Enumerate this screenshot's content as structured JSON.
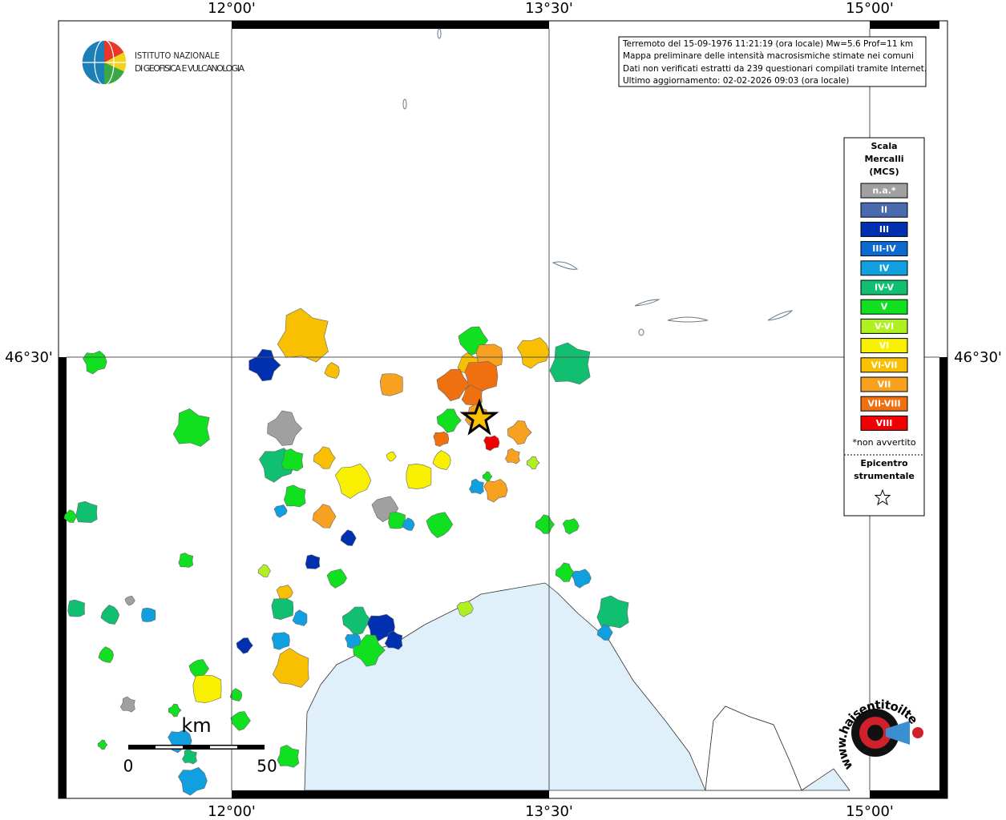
{
  "logo": {
    "line1": "ISTITUTO NAZIONALE",
    "line2": "DI GEOFISICA E VULCANOLOGIA"
  },
  "info": [
    "Terremoto del 15-09-1976 11:21:19 (ora locale) Mw=5.6 Prof=11 km",
    "Mappa preliminare delle intensità macrosismiche stimate nei comuni",
    "Dati non verificati estratti da 239 questionari compilati tramite Internet.",
    "Ultimo aggiornamento: 02-02-2026 09:03 (ora locale)"
  ],
  "grid_labels": {
    "lon": [
      "12°00'",
      "13°30'",
      "15°00'"
    ],
    "lat": [
      "46°30'"
    ]
  },
  "legend": {
    "title": [
      "Scala",
      "Mercalli",
      "(MCS)"
    ],
    "items": [
      {
        "label": "n.a.*",
        "color": "#a0a0a0"
      },
      {
        "label": "II",
        "color": "#4a6ab0"
      },
      {
        "label": "III",
        "color": "#0030b0"
      },
      {
        "label": "III-IV",
        "color": "#0a6ad0"
      },
      {
        "label": "IV",
        "color": "#10a0e0"
      },
      {
        "label": "IV-V",
        "color": "#10c070"
      },
      {
        "label": "V",
        "color": "#10e020"
      },
      {
        "label": "V-VI",
        "color": "#b0f020"
      },
      {
        "label": "VI",
        "color": "#f8f000"
      },
      {
        "label": "VI-VII",
        "color": "#f8c000"
      },
      {
        "label": "VII",
        "color": "#f8a020"
      },
      {
        "label": "VII-VIII",
        "color": "#f07010"
      },
      {
        "label": "VIII",
        "color": "#f00000"
      }
    ],
    "note": "*non avvertito",
    "epicenter": [
      "Epicentro",
      "strumentale"
    ]
  },
  "scale": {
    "unit": "km",
    "start": "0",
    "end": "50"
  },
  "site": "www.haisentitoilterremoto.it"
}
